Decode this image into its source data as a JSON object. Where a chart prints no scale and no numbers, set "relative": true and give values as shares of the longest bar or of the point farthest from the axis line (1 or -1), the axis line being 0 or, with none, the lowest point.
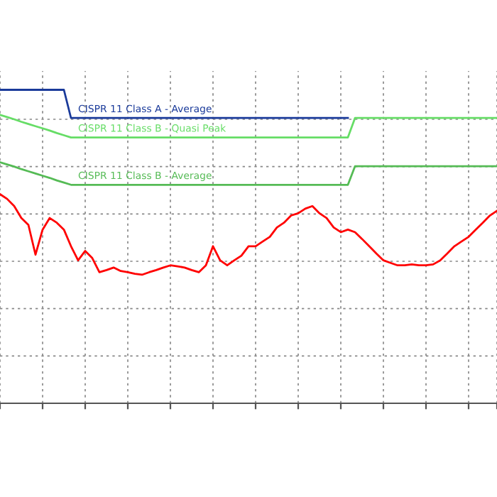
{
  "chart_data": {
    "type": "line",
    "relative": true,
    "tick_labels": false,
    "grid": true,
    "legend": false,
    "categories": [
      null,
      null,
      null,
      null,
      null,
      null,
      null,
      null,
      null,
      null,
      null,
      null,
      null,
      null,
      null,
      null,
      null,
      null,
      null,
      null,
      null,
      null,
      null,
      null,
      null,
      null,
      null,
      null,
      null,
      null,
      null,
      null,
      null,
      null,
      null,
      null,
      null,
      null,
      null,
      null,
      null,
      null,
      null,
      null,
      null,
      null,
      null,
      null,
      null,
      null,
      null,
      null,
      null,
      null,
      null,
      null,
      null,
      null,
      null,
      null,
      null,
      null,
      null,
      null,
      null,
      null,
      null,
      null,
      null,
      null,
      null
    ],
    "series": [
      {
        "color": "#ff0000",
        "values": [
          0.667,
          0.652,
          0.629,
          0.591,
          0.569,
          0.474,
          0.554,
          0.591,
          0.576,
          0.554,
          0.501,
          0.456,
          0.486,
          0.463,
          0.418,
          0.425,
          0.433,
          0.422,
          0.418,
          0.413,
          0.41,
          0.418,
          0.425,
          0.433,
          0.44,
          0.437,
          0.433,
          0.425,
          0.418,
          0.44,
          0.501,
          0.456,
          0.44,
          0.456,
          0.471,
          0.501,
          0.501,
          0.516,
          0.531,
          0.561,
          0.576,
          0.599,
          0.606,
          0.621,
          0.629,
          0.606,
          0.591,
          0.561,
          0.546,
          0.554,
          0.546,
          0.524,
          0.501,
          0.478,
          0.456,
          0.448,
          0.44,
          0.44,
          0.443,
          0.44,
          0.44,
          0.443,
          0.456,
          0.478,
          0.501,
          0.516,
          0.531,
          0.554,
          0.576,
          0.599,
          0.614
        ]
      },
      {
        "name": "CISPR 11 Class A - Average",
        "color": "#1a3a9a",
        "values": [
          1.0,
          1.0,
          1.0,
          1.0,
          1.0,
          1.0,
          1.0,
          1.0,
          1.0,
          1.0,
          0.91,
          0.91,
          0.91,
          0.91,
          0.91,
          0.91,
          0.91,
          0.91,
          0.91,
          0.91,
          0.91,
          0.91,
          0.91,
          0.91,
          0.91,
          0.91,
          0.91,
          0.91,
          0.91,
          0.91,
          0.91,
          0.91,
          0.91,
          0.91,
          0.91,
          0.91,
          0.91,
          0.91,
          0.91,
          0.91,
          0.91,
          0.91,
          0.91,
          0.91,
          0.91,
          0.91,
          0.91,
          0.91,
          0.91,
          0.91,
          null,
          null,
          null,
          null,
          null,
          null,
          null,
          null,
          null,
          null,
          null,
          null,
          null,
          null,
          null,
          null,
          null,
          null,
          null,
          null,
          null
        ]
      },
      {
        "name": "CISPR 11 Class B - Quasi Peak",
        "color": "#66dd66",
        "values": [
          0.92,
          0.913,
          0.906,
          0.898,
          0.891,
          0.884,
          0.877,
          0.87,
          0.862,
          0.855,
          0.848,
          0.848,
          0.848,
          0.848,
          0.848,
          0.848,
          0.848,
          0.848,
          0.848,
          0.848,
          0.848,
          0.848,
          0.848,
          0.848,
          0.848,
          0.848,
          0.848,
          0.848,
          0.848,
          0.848,
          0.848,
          0.848,
          0.848,
          0.848,
          0.848,
          0.848,
          0.848,
          0.848,
          0.848,
          0.848,
          0.848,
          0.848,
          0.848,
          0.848,
          0.848,
          0.848,
          0.848,
          0.848,
          0.848,
          0.848,
          0.91,
          0.91,
          0.91,
          0.91,
          0.91,
          0.91,
          0.91,
          0.91,
          0.91,
          0.91,
          0.91,
          0.91,
          0.91,
          0.91,
          0.91,
          0.91,
          0.91,
          0.91,
          0.91,
          0.91,
          0.91
        ]
      },
      {
        "name": "CISPR 11 Class B - Average",
        "color": "#55bb55",
        "values": [
          0.769,
          0.762,
          0.755,
          0.747,
          0.74,
          0.733,
          0.726,
          0.719,
          0.711,
          0.704,
          0.697,
          0.697,
          0.697,
          0.697,
          0.697,
          0.697,
          0.697,
          0.697,
          0.697,
          0.697,
          0.697,
          0.697,
          0.697,
          0.697,
          0.697,
          0.697,
          0.697,
          0.697,
          0.697,
          0.697,
          0.697,
          0.697,
          0.697,
          0.697,
          0.697,
          0.697,
          0.697,
          0.697,
          0.697,
          0.697,
          0.697,
          0.697,
          0.697,
          0.697,
          0.697,
          0.697,
          0.697,
          0.697,
          0.697,
          0.697,
          0.756,
          0.756,
          0.756,
          0.756,
          0.756,
          0.756,
          0.756,
          0.756,
          0.756,
          0.756,
          0.756,
          0.756,
          0.756,
          0.756,
          0.756,
          0.756,
          0.756,
          0.756,
          0.756,
          0.756,
          0.756
        ]
      }
    ]
  }
}
